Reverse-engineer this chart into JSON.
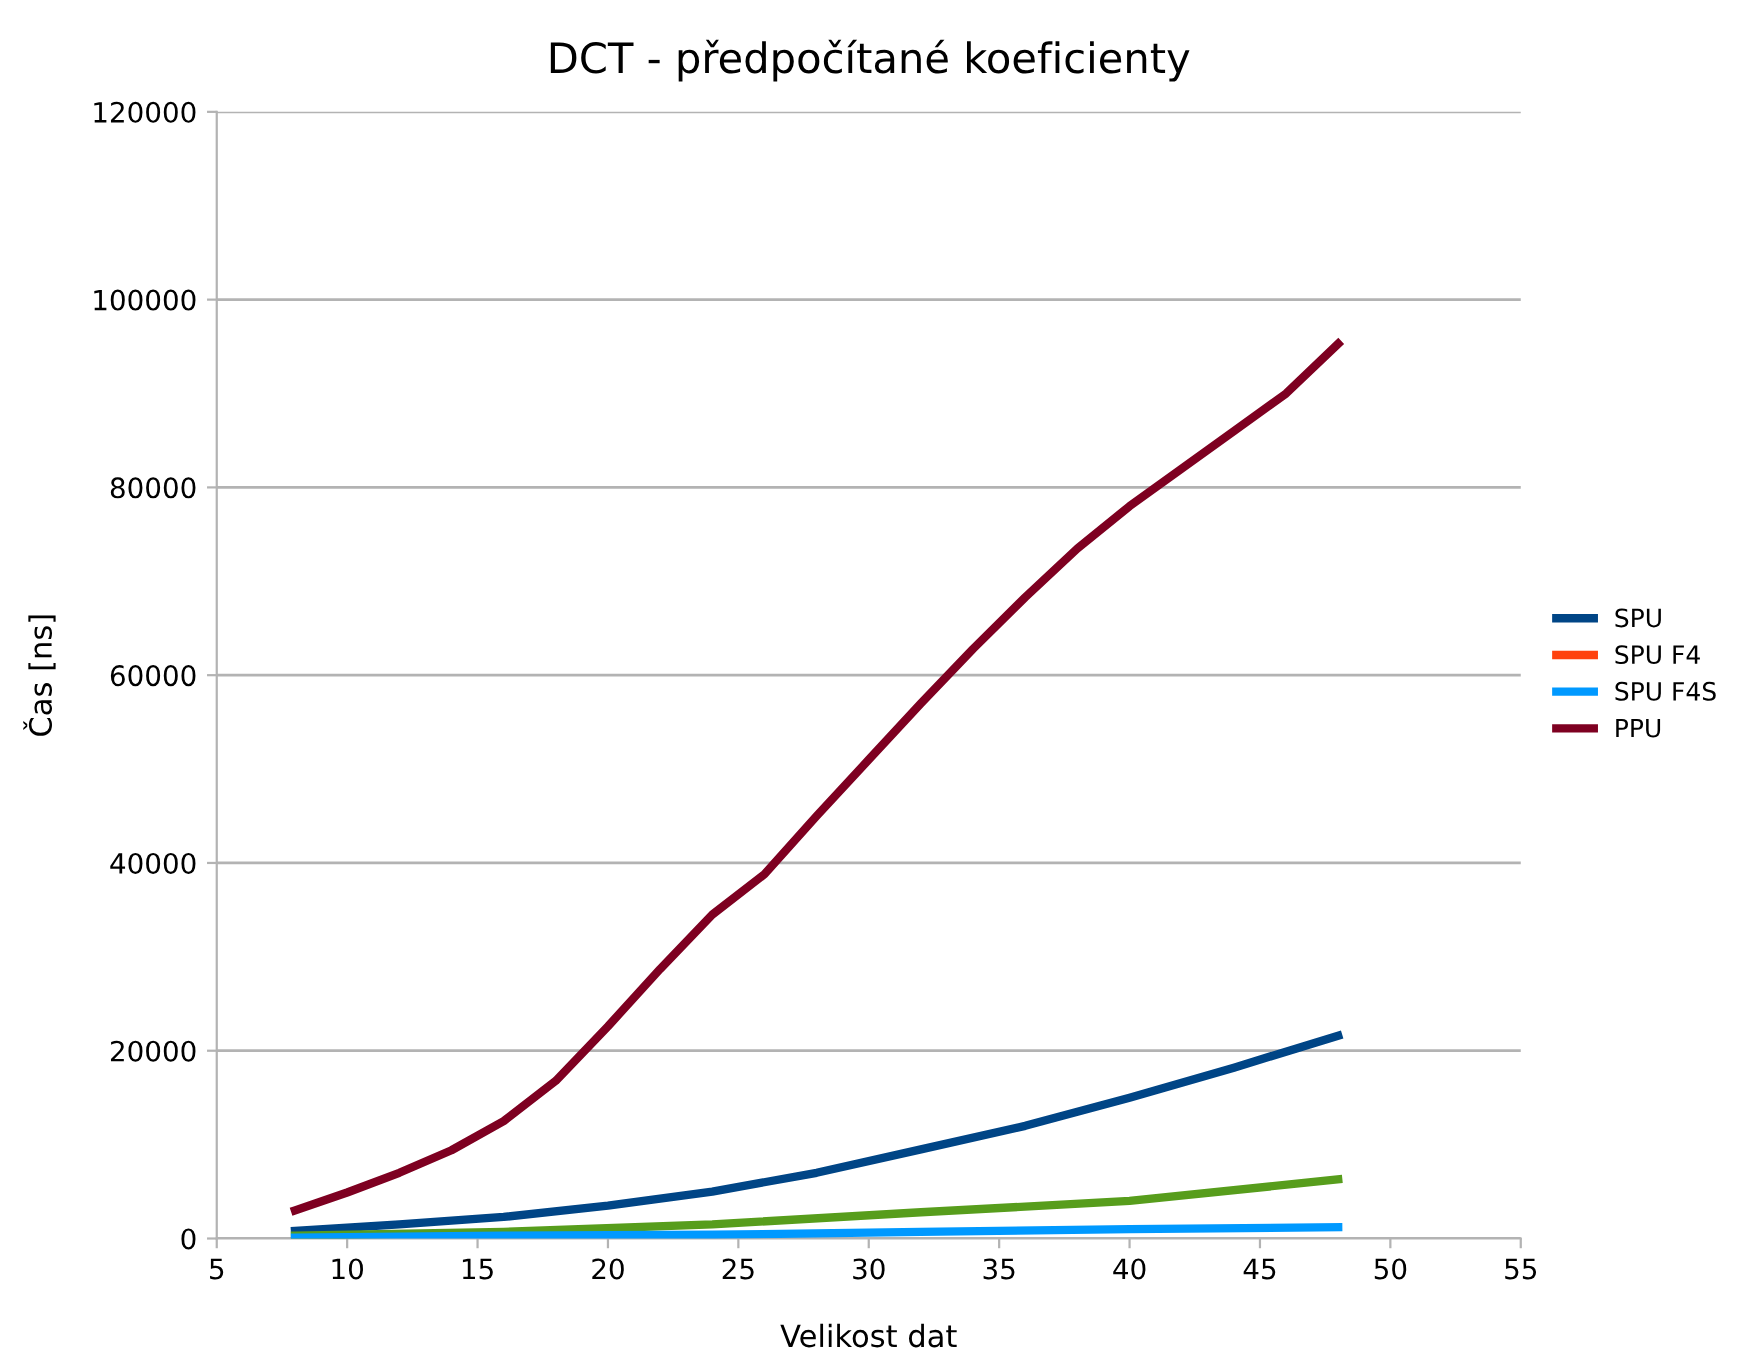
{
  "chart_data": {
    "type": "line",
    "title": "DCT - předpočítané koeficienty",
    "xlabel": "Velikost dat",
    "ylabel": "Čas [ns]",
    "x": [
      8,
      16,
      24,
      32,
      40,
      48
    ],
    "series": [
      {
        "name": "SPU",
        "color": "#004586",
        "x": [
          8,
          12,
          16,
          20,
          24,
          28,
          32,
          36,
          40,
          44,
          48
        ],
        "values": [
          800,
          1500,
          2300,
          3500,
          5000,
          7000,
          9500,
          12000,
          15000,
          18200,
          21600
        ]
      },
      {
        "name": "SPU F4",
        "color": "#ff420e",
        "values": [
          null,
          null,
          null,
          null,
          null,
          null
        ]
      },
      {
        "name": "SPU F4S",
        "color": "#0099ff",
        "values": [
          100,
          300,
          400,
          700,
          1000,
          1200
        ]
      },
      {
        "color": "#579d1c",
        "values": [
          300,
          700,
          1500,
          2800,
          4000,
          6300
        ]
      },
      {
        "name": "PPU",
        "color": "#7e0021",
        "x": [
          8,
          10,
          12,
          14,
          16,
          18,
          20,
          22,
          24,
          26,
          28,
          30,
          32,
          34,
          36,
          38,
          40,
          42,
          44,
          46,
          48
        ],
        "values": [
          3000,
          4900,
          7000,
          9400,
          12500,
          16800,
          22600,
          28700,
          34500,
          38800,
          45000,
          51000,
          57000,
          62800,
          68300,
          73500,
          78000,
          82000,
          86000,
          90000,
          95300
        ]
      }
    ],
    "xlim": [
      5,
      55
    ],
    "xticks": [
      5,
      10,
      15,
      20,
      25,
      30,
      35,
      40,
      45,
      50,
      55
    ],
    "ylim": [
      0,
      120000
    ],
    "yticks": [
      0,
      20000,
      40000,
      60000,
      80000,
      100000,
      120000
    ],
    "grid": "y",
    "legend": "right",
    "marker": "none",
    "line_style": "solid"
  }
}
